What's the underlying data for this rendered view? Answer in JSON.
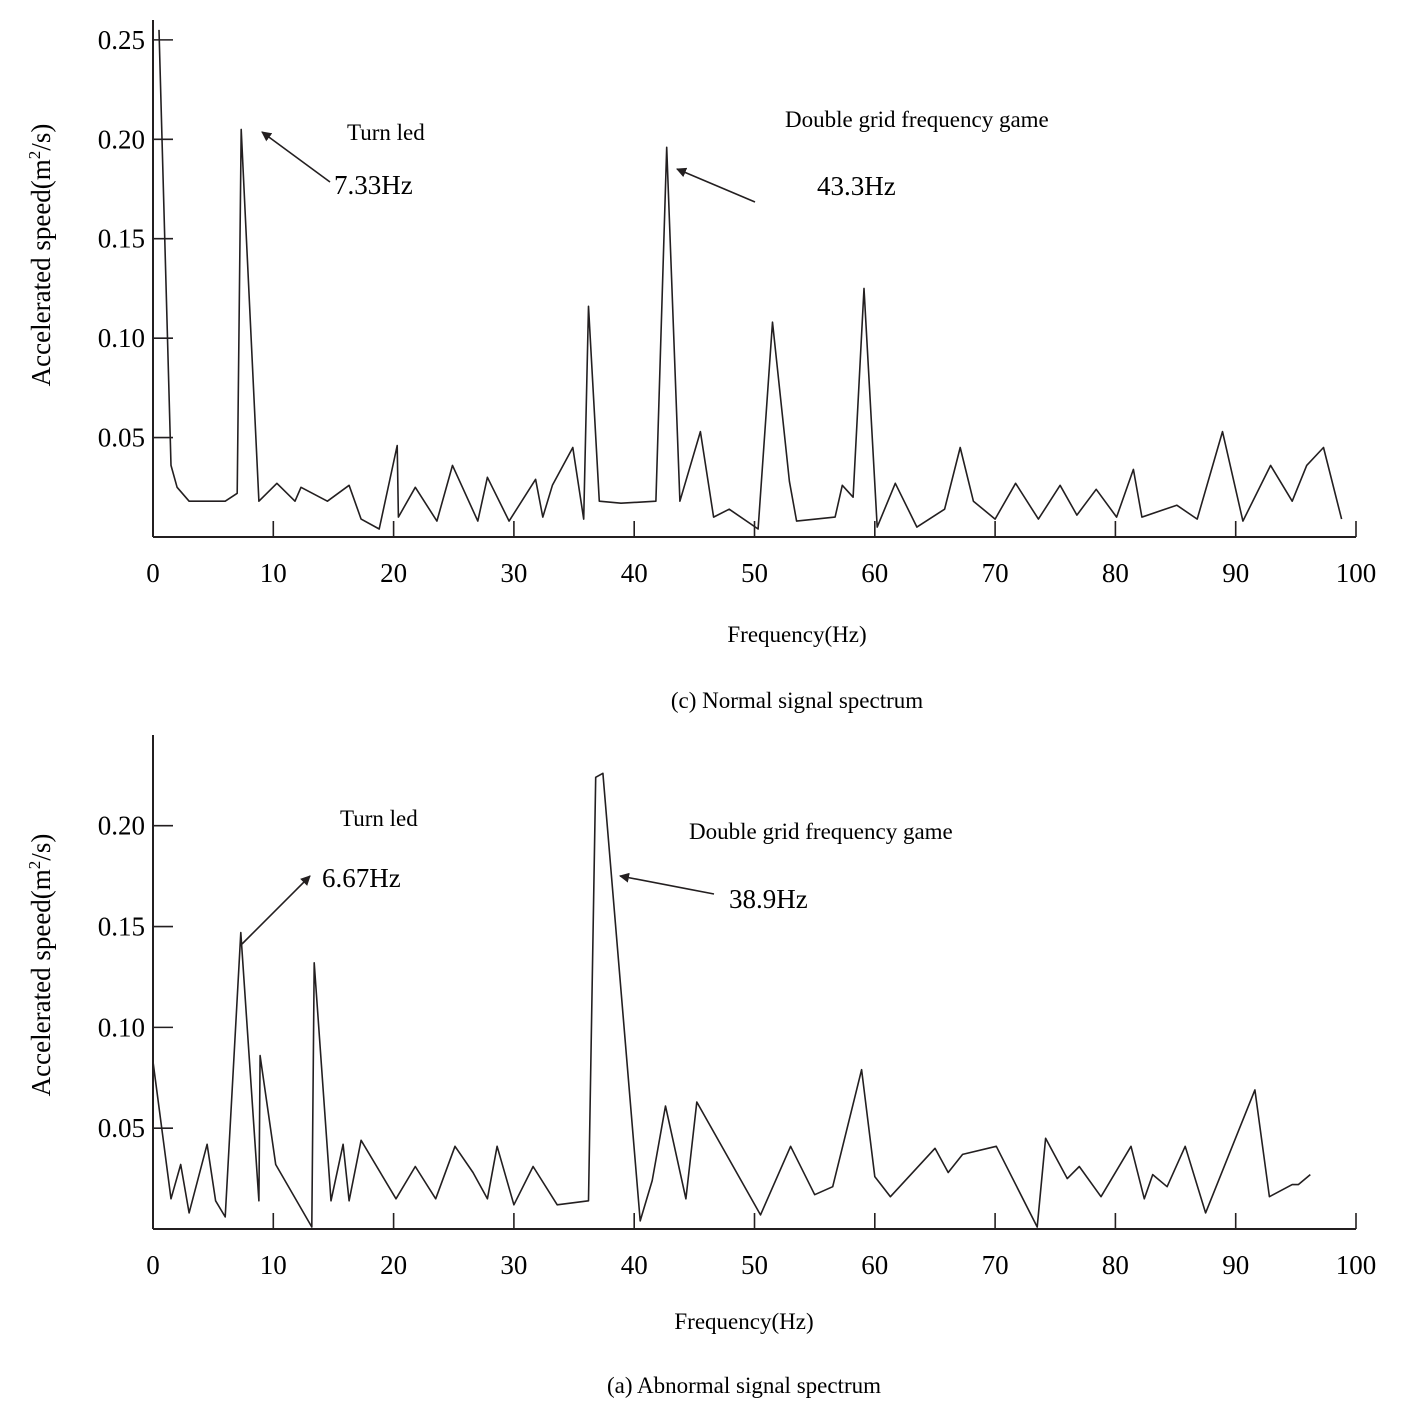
{
  "chart_data": [
    {
      "type": "line",
      "caption": "(c) Normal signal spectrum",
      "xlabel": "Frequency(Hz)",
      "ylabel_main": "Accelerated speed(m",
      "ylabel_sup": "2",
      "ylabel_tail": "/s)",
      "xlim": [
        0,
        100
      ],
      "ylim": [
        0,
        0.26
      ],
      "xticks": [
        "0",
        "10",
        "20",
        "30",
        "40",
        "50",
        "60",
        "70",
        "80",
        "90",
        "100"
      ],
      "yticks": [
        {
          "value": 0.05,
          "label": "0.05"
        },
        {
          "value": 0.1,
          "label": "0.10"
        },
        {
          "value": 0.15,
          "label": "0.15"
        },
        {
          "value": 0.2,
          "label": "0.20"
        },
        {
          "value": 0.25,
          "label": "0.25"
        }
      ],
      "grid": false,
      "x": [
        0.5,
        1.5,
        2.0,
        3.0,
        6.0,
        7.0,
        7.33,
        8.8,
        10.3,
        11.8,
        12.3,
        14.5,
        16.3,
        17.3,
        18.8,
        20.3,
        20.4,
        21.8,
        23.6,
        24.9,
        27.0,
        27.8,
        29.6,
        31.8,
        32.4,
        33.2,
        34.9,
        35.8,
        36.2,
        37.1,
        38.9,
        41.8,
        42.7,
        43.8,
        45.5,
        46.6,
        47.9,
        50.3,
        51.5,
        52.9,
        53.5,
        56.7,
        57.3,
        58.2,
        59.1,
        60.2,
        61.7,
        63.5,
        65.8,
        67.1,
        68.2,
        70.0,
        71.7,
        73.6,
        75.4,
        76.8,
        78.4,
        80.1,
        81.5,
        82.2,
        85.1,
        86.8,
        88.9,
        90.6,
        92.9,
        94.7,
        95.9,
        97.3,
        98.8
      ],
      "y": [
        0.255,
        0.036,
        0.025,
        0.018,
        0.018,
        0.022,
        0.205,
        0.018,
        0.027,
        0.018,
        0.025,
        0.018,
        0.026,
        0.009,
        0.004,
        0.046,
        0.01,
        0.025,
        0.008,
        0.036,
        0.008,
        0.03,
        0.008,
        0.029,
        0.01,
        0.026,
        0.045,
        0.009,
        0.116,
        0.018,
        0.017,
        0.018,
        0.196,
        0.018,
        0.053,
        0.01,
        0.014,
        0.004,
        0.108,
        0.028,
        0.008,
        0.01,
        0.026,
        0.02,
        0.125,
        0.005,
        0.027,
        0.005,
        0.014,
        0.045,
        0.018,
        0.009,
        0.027,
        0.009,
        0.026,
        0.011,
        0.024,
        0.01,
        0.034,
        0.01,
        0.016,
        0.009,
        0.053,
        0.008,
        0.036,
        0.018,
        0.036,
        0.045,
        0.009
      ],
      "annotations": [
        {
          "label": "Turn led",
          "value": "7.33Hz"
        },
        {
          "label": "Double grid frequency game",
          "value": "43.3Hz"
        }
      ],
      "color": "#231f20"
    },
    {
      "type": "line",
      "caption": "(a) Abnormal signal spectrum",
      "xlabel": "Frequency(Hz)",
      "ylabel_main": "Accelerated speed(m",
      "ylabel_sup": "2",
      "ylabel_tail": "/s)",
      "xlim": [
        0,
        100
      ],
      "ylim": [
        0,
        0.245
      ],
      "xticks": [
        "0",
        "10",
        "20",
        "30",
        "40",
        "50",
        "60",
        "70",
        "80",
        "90",
        "100"
      ],
      "yticks": [
        {
          "value": 0.05,
          "label": "0.05"
        },
        {
          "value": 0.1,
          "label": "0.10"
        },
        {
          "value": 0.15,
          "label": "0.15"
        },
        {
          "value": 0.2,
          "label": "0.20"
        }
      ],
      "grid": false,
      "x": [
        0.0,
        1.5,
        2.3,
        3.0,
        4.5,
        5.2,
        6.0,
        7.3,
        8.8,
        8.9,
        10.2,
        13.2,
        13.4,
        14.8,
        15.8,
        16.3,
        17.3,
        20.2,
        21.8,
        23.5,
        25.1,
        26.6,
        27.8,
        28.6,
        30.0,
        31.6,
        33.6,
        36.2,
        36.8,
        37.4,
        40.5,
        41.5,
        42.6,
        44.3,
        45.2,
        50.5,
        53.0,
        55.0,
        56.5,
        58.9,
        60.0,
        61.3,
        65.0,
        66.1,
        67.3,
        70.1,
        73.5,
        74.2,
        76.0,
        77.0,
        78.8,
        81.3,
        82.4,
        83.1,
        84.3,
        85.8,
        87.5,
        91.6,
        92.8,
        94.7,
        95.2,
        96.2
      ],
      "y": [
        0.083,
        0.015,
        0.032,
        0.008,
        0.042,
        0.014,
        0.006,
        0.147,
        0.014,
        0.086,
        0.032,
        0.001,
        0.132,
        0.014,
        0.042,
        0.014,
        0.044,
        0.015,
        0.031,
        0.015,
        0.041,
        0.028,
        0.015,
        0.041,
        0.012,
        0.031,
        0.012,
        0.014,
        0.224,
        0.226,
        0.004,
        0.024,
        0.061,
        0.015,
        0.063,
        0.007,
        0.041,
        0.017,
        0.021,
        0.079,
        0.026,
        0.016,
        0.04,
        0.028,
        0.037,
        0.041,
        0.001,
        0.045,
        0.025,
        0.031,
        0.016,
        0.041,
        0.015,
        0.027,
        0.021,
        0.041,
        0.008,
        0.069,
        0.016,
        0.022,
        0.022,
        0.027
      ],
      "annotations": [
        {
          "label": "Turn led",
          "value": "6.67Hz"
        },
        {
          "label": "Double grid frequency game",
          "value": "38.9Hz"
        }
      ],
      "color": "#231f20"
    }
  ]
}
